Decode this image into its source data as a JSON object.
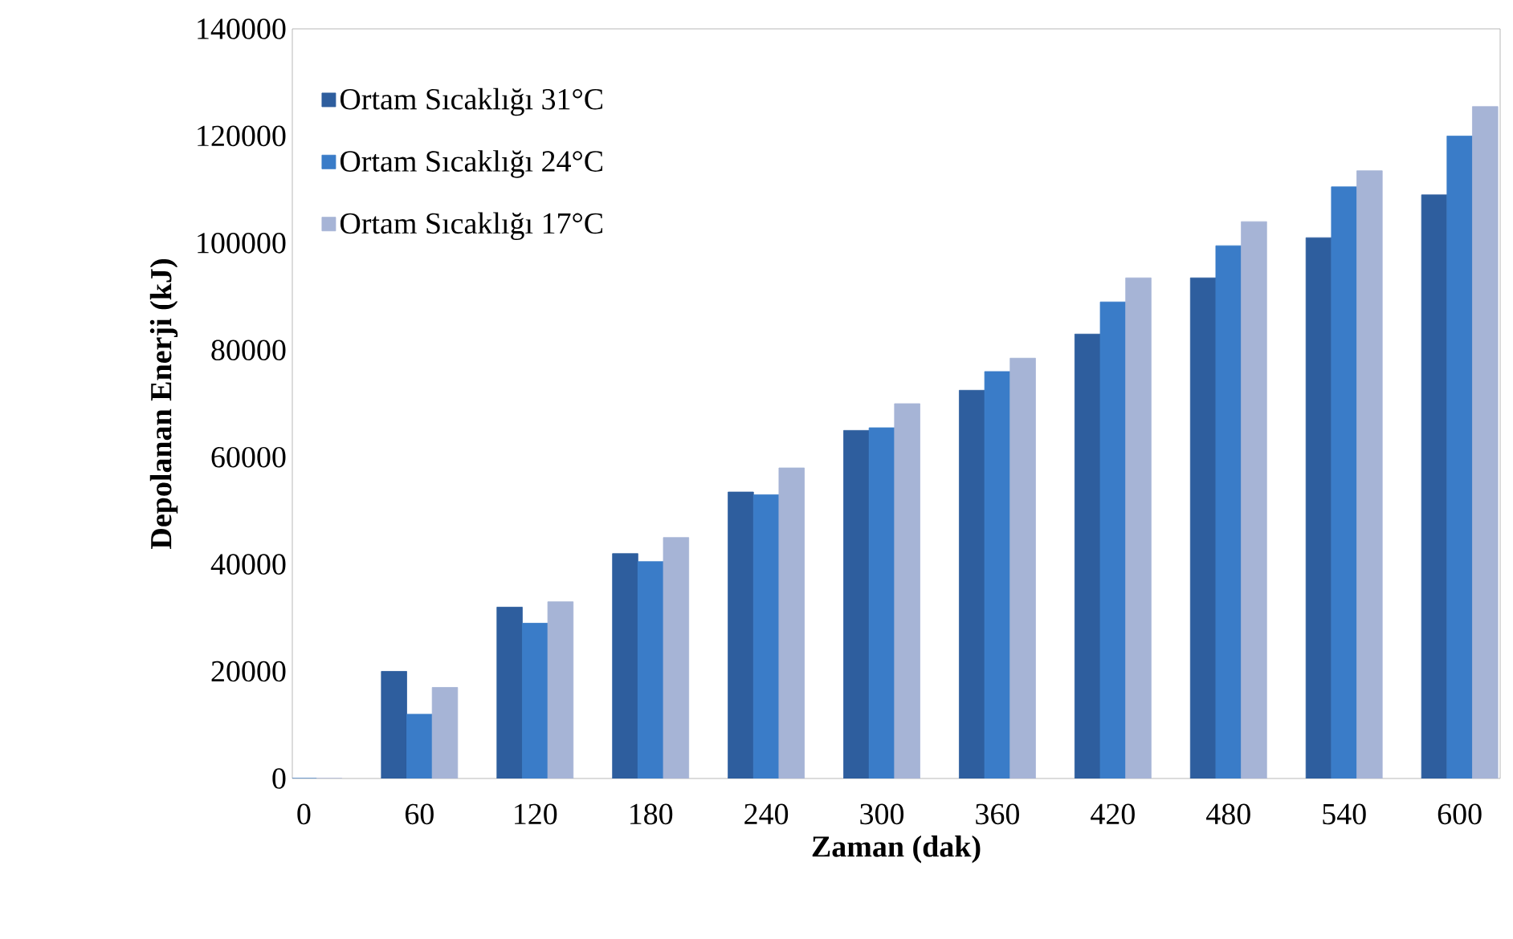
{
  "chart_data": {
    "type": "bar",
    "xlabel": "Zaman (dak)",
    "ylabel": "Depolanan Enerji (kJ)",
    "categories": [
      "0",
      "60",
      "120",
      "180",
      "240",
      "300",
      "360",
      "420",
      "480",
      "540",
      "600"
    ],
    "series": [
      {
        "name": "Ortam Sıcaklığı 31°C",
        "color": "#2e5e9e",
        "values": [
          0,
          20000,
          32000,
          42000,
          53500,
          65000,
          72500,
          83000,
          93500,
          101000,
          109000
        ]
      },
      {
        "name": "Ortam Sıcaklığı 24°C",
        "color": "#3a7cc8",
        "values": [
          0,
          12000,
          29000,
          40500,
          53000,
          65500,
          76000,
          89000,
          99500,
          110500,
          120000
        ]
      },
      {
        "name": "Ortam Sıcaklığı 17°C",
        "color": "#a6b4d6",
        "values": [
          0,
          17000,
          33000,
          45000,
          58000,
          70000,
          78500,
          93500,
          104000,
          113500,
          125500
        ]
      }
    ],
    "ylim": [
      0,
      140000
    ],
    "yticks": [
      0,
      20000,
      40000,
      60000,
      80000,
      100000,
      120000,
      140000
    ],
    "grid": false,
    "legend": "top left"
  }
}
